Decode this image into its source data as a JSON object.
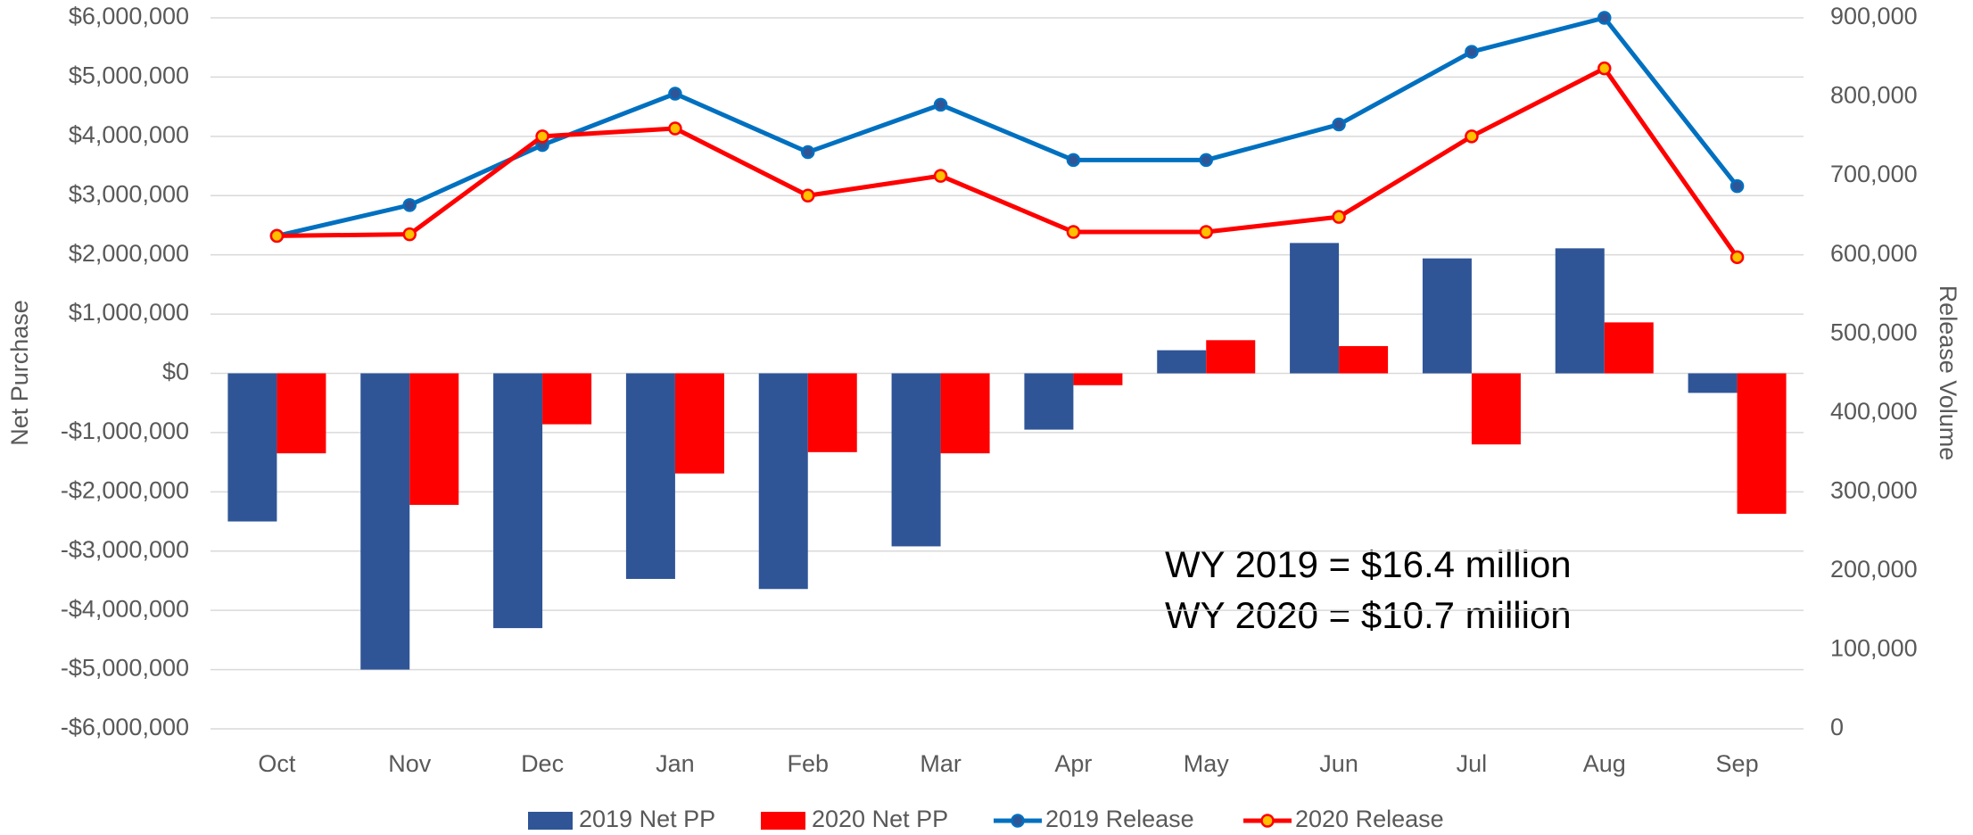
{
  "chart_data": {
    "type": "combo",
    "categories": [
      "Oct",
      "Nov",
      "Dec",
      "Jan",
      "Feb",
      "Mar",
      "Apr",
      "May",
      "Jun",
      "Jul",
      "Aug",
      "Sep"
    ],
    "y_axis_label": "Net Purchase",
    "y2_axis_label": "Release Volume",
    "annotations": [
      "WY 2019 = $16.4 million",
      "WY 2020 = $10.7 million"
    ],
    "ylim": [
      -6000000,
      6000000
    ],
    "yticks": [
      {
        "value": 6000000,
        "label": "$6,000,000"
      },
      {
        "value": 5000000,
        "label": "$5,000,000"
      },
      {
        "value": 4000000,
        "label": "$4,000,000"
      },
      {
        "value": 3000000,
        "label": "$3,000,000"
      },
      {
        "value": 2000000,
        "label": "$2,000,000"
      },
      {
        "value": 1000000,
        "label": "$1,000,000"
      },
      {
        "value": 0,
        "label": "$0"
      },
      {
        "value": -1000000,
        "label": "-$1,000,000"
      },
      {
        "value": -2000000,
        "label": "-$2,000,000"
      },
      {
        "value": -3000000,
        "label": "-$3,000,000"
      },
      {
        "value": -4000000,
        "label": "-$4,000,000"
      },
      {
        "value": -5000000,
        "label": "-$5,000,000"
      },
      {
        "value": -6000000,
        "label": "-$6,000,000"
      }
    ],
    "y2lim": [
      0,
      900000
    ],
    "y2ticks": [
      {
        "value": 900000,
        "label": "900,000"
      },
      {
        "value": 800000,
        "label": "800,000"
      },
      {
        "value": 700000,
        "label": "700,000"
      },
      {
        "value": 600000,
        "label": "600,000"
      },
      {
        "value": 500000,
        "label": "500,000"
      },
      {
        "value": 400000,
        "label": "400,000"
      },
      {
        "value": 300000,
        "label": "300,000"
      },
      {
        "value": 200000,
        "label": "200,000"
      },
      {
        "value": 100000,
        "label": "100,000"
      },
      0
    ],
    "grid": true,
    "legend": "bottom",
    "series": [
      {
        "name": "2019 Net PP",
        "type": "bar",
        "color": "#2f5597",
        "values": [
          -2500000,
          -5000000,
          -4300000,
          -3470000,
          -3640000,
          -2920000,
          -950000,
          390000,
          2200000,
          1940000,
          2110000,
          -330000
        ]
      },
      {
        "name": "2020 Net PP",
        "type": "bar",
        "color": "#ff0000",
        "values": [
          -1350000,
          -2220000,
          -860000,
          -1690000,
          -1330000,
          -1350000,
          -200000,
          560000,
          460000,
          -1200000,
          860000,
          -2370000
        ]
      },
      {
        "name": "2019 Release",
        "type": "line",
        "axis": "y2",
        "color": "#0070c0",
        "marker_color": "#2f5597",
        "values": [
          624000,
          663000,
          739000,
          804000,
          730000,
          790000,
          720000,
          720000,
          765000,
          857000,
          900000,
          687000
        ]
      },
      {
        "name": "2020 Release",
        "type": "line",
        "axis": "y2",
        "color": "#ff0000",
        "marker_color": "#ffc000",
        "values": [
          624000,
          626000,
          750000,
          760000,
          675000,
          700000,
          629000,
          629000,
          648000,
          750000,
          836000,
          597000
        ]
      }
    ]
  }
}
